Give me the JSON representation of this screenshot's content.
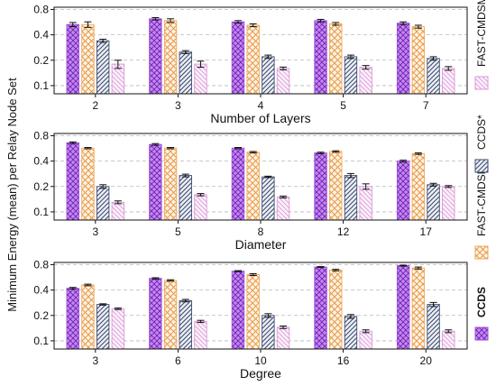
{
  "ylabel": "Minimum Energy (mean) per Relay Node Set",
  "colors": {
    "CCDS": "#9b4fd6",
    "FAST-CMDSM": "#f0a85a",
    "CCDS*": "#3c4c70",
    "FAST-CMDSM*": "#d99ad6"
  },
  "legend": [
    {
      "name": "CCDS",
      "bold": true
    },
    {
      "name": "FAST-CMDSM",
      "bold": false
    },
    {
      "name": "CCDS*",
      "bold": false
    },
    {
      "name": "FAST-CMDSM*",
      "bold": false
    }
  ],
  "chart_data": [
    {
      "type": "bar",
      "xlabel": "Number of Layers",
      "categories": [
        "2",
        "3",
        "4",
        "5",
        "7"
      ],
      "yscale": "log",
      "ylim": [
        0.08,
        0.85
      ],
      "yticks": [
        0.1,
        0.2,
        0.4,
        0.8
      ],
      "ytick_labels": [
        "0.1",
        "0.2",
        "0.4",
        "0.8"
      ],
      "grid": "horizontal-dashed",
      "series": [
        {
          "name": "CCDS",
          "values": [
            0.53,
            0.62,
            0.57,
            0.59,
            0.55
          ],
          "errors": [
            0.03,
            0.02,
            0.02,
            0.02,
            0.02
          ]
        },
        {
          "name": "FAST-CMDSM",
          "values": [
            0.53,
            0.59,
            0.52,
            0.54,
            0.5
          ],
          "errors": [
            0.04,
            0.03,
            0.02,
            0.02,
            0.02
          ]
        },
        {
          "name": "CCDS*",
          "values": [
            0.34,
            0.25,
            0.22,
            0.22,
            0.21
          ],
          "errors": [
            0.015,
            0.01,
            0.01,
            0.01,
            0.01
          ]
        },
        {
          "name": "FAST-CMDSM*",
          "values": [
            0.18,
            0.18,
            0.16,
            0.165,
            0.16
          ],
          "errors": [
            0.02,
            0.015,
            0.006,
            0.008,
            0.008
          ]
        }
      ]
    },
    {
      "type": "bar",
      "xlabel": "Diameter",
      "categories": [
        "3",
        "5",
        "8",
        "12",
        "17"
      ],
      "yscale": "log",
      "ylim": [
        0.08,
        0.85
      ],
      "yticks": [
        0.1,
        0.2,
        0.4,
        0.8
      ],
      "ytick_labels": [
        "0.1",
        "0.2",
        "0.4",
        "0.8"
      ],
      "grid": "horizontal-dashed",
      "series": [
        {
          "name": "CCDS",
          "values": [
            0.66,
            0.63,
            0.57,
            0.5,
            0.4
          ],
          "errors": [
            0.015,
            0.015,
            0.01,
            0.01,
            0.01
          ]
        },
        {
          "name": "FAST-CMDSM",
          "values": [
            0.57,
            0.57,
            0.51,
            0.52,
            0.49
          ],
          "errors": [
            0.01,
            0.01,
            0.01,
            0.01,
            0.01
          ]
        },
        {
          "name": "CCDS*",
          "values": [
            0.2,
            0.27,
            0.26,
            0.27,
            0.21
          ],
          "errors": [
            0.01,
            0.01,
            0.005,
            0.015,
            0.008
          ]
        },
        {
          "name": "FAST-CMDSM*",
          "values": [
            0.13,
            0.16,
            0.15,
            0.2,
            0.2
          ],
          "errors": [
            0.005,
            0.005,
            0.004,
            0.015,
            0.005
          ]
        }
      ]
    },
    {
      "type": "bar",
      "xlabel": "Degree",
      "categories": [
        "3",
        "6",
        "10",
        "16",
        "20"
      ],
      "yscale": "log",
      "ylim": [
        0.08,
        0.85
      ],
      "yticks": [
        0.1,
        0.2,
        0.4,
        0.8
      ],
      "ytick_labels": [
        "0.1",
        "0.2",
        "0.4",
        "0.8"
      ],
      "grid": "horizontal-dashed",
      "series": [
        {
          "name": "CCDS",
          "values": [
            0.42,
            0.55,
            0.67,
            0.75,
            0.78
          ],
          "errors": [
            0.01,
            0.01,
            0.01,
            0.01,
            0.01
          ]
        },
        {
          "name": "FAST-CMDSM",
          "values": [
            0.46,
            0.52,
            0.61,
            0.69,
            0.73
          ],
          "errors": [
            0.01,
            0.01,
            0.015,
            0.015,
            0.02
          ]
        },
        {
          "name": "CCDS*",
          "values": [
            0.27,
            0.3,
            0.2,
            0.195,
            0.27
          ],
          "errors": [
            0.005,
            0.01,
            0.01,
            0.01,
            0.015
          ]
        },
        {
          "name": "FAST-CMDSM*",
          "values": [
            0.24,
            0.17,
            0.145,
            0.13,
            0.13
          ],
          "errors": [
            0.005,
            0.005,
            0.005,
            0.005,
            0.005
          ]
        }
      ]
    }
  ]
}
